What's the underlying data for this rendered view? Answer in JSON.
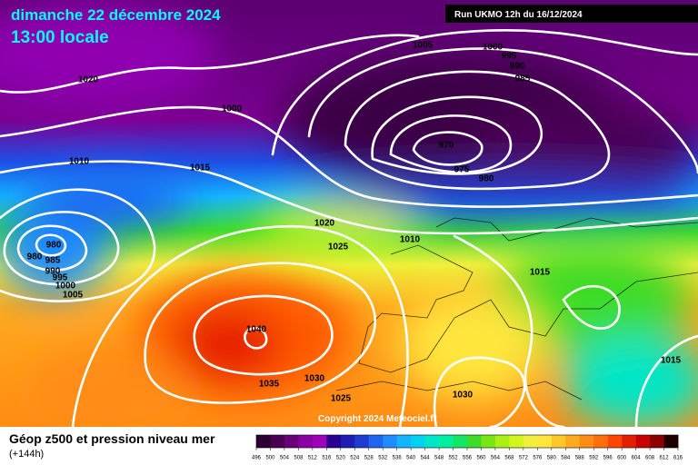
{
  "header": {
    "date": "dimanche 22 décembre 2024",
    "time": "13:00 locale",
    "run": "Run UKMO 12h du 16/12/2024"
  },
  "isobar_labels": [
    1005,
    1000,
    995,
    990,
    985,
    1020,
    1000,
    1010,
    970,
    975,
    980,
    1015,
    1020,
    1025,
    1010,
    1015,
    980,
    980,
    985,
    990,
    995,
    1000,
    1005,
    1040,
    1035,
    1030,
    1025,
    1030,
    1015
  ],
  "copyright": "Copyright 2024 Meteociel.fr",
  "legend": {
    "title": "Géop z500 et pression niveau mer",
    "lead": "(+144h)",
    "colorbar": {
      "ticks": [
        496,
        500,
        504,
        508,
        512,
        516,
        520,
        524,
        528,
        532,
        536,
        540,
        544,
        548,
        552,
        556,
        560,
        564,
        568,
        572,
        576,
        580,
        584,
        588,
        592,
        596,
        600,
        604,
        608,
        612,
        616
      ],
      "colors": [
        "#2c0030",
        "#4a0050",
        "#6a0078",
        "#8a00a0",
        "#a000b8",
        "#2a0090",
        "#1e1eb4",
        "#1e3cd2",
        "#1e64f0",
        "#1e8cff",
        "#14b4ff",
        "#00d2f0",
        "#00e6c8",
        "#00f0a0",
        "#14e664",
        "#3cdc28",
        "#78e614",
        "#aaf014",
        "#d2f51e",
        "#f0f03c",
        "#ffe63c",
        "#ffc828",
        "#ffaa1e",
        "#ff8c14",
        "#ff6e0a",
        "#ff4600",
        "#e61e00",
        "#c80000",
        "#8c0000",
        "#1e0000"
      ]
    }
  }
}
